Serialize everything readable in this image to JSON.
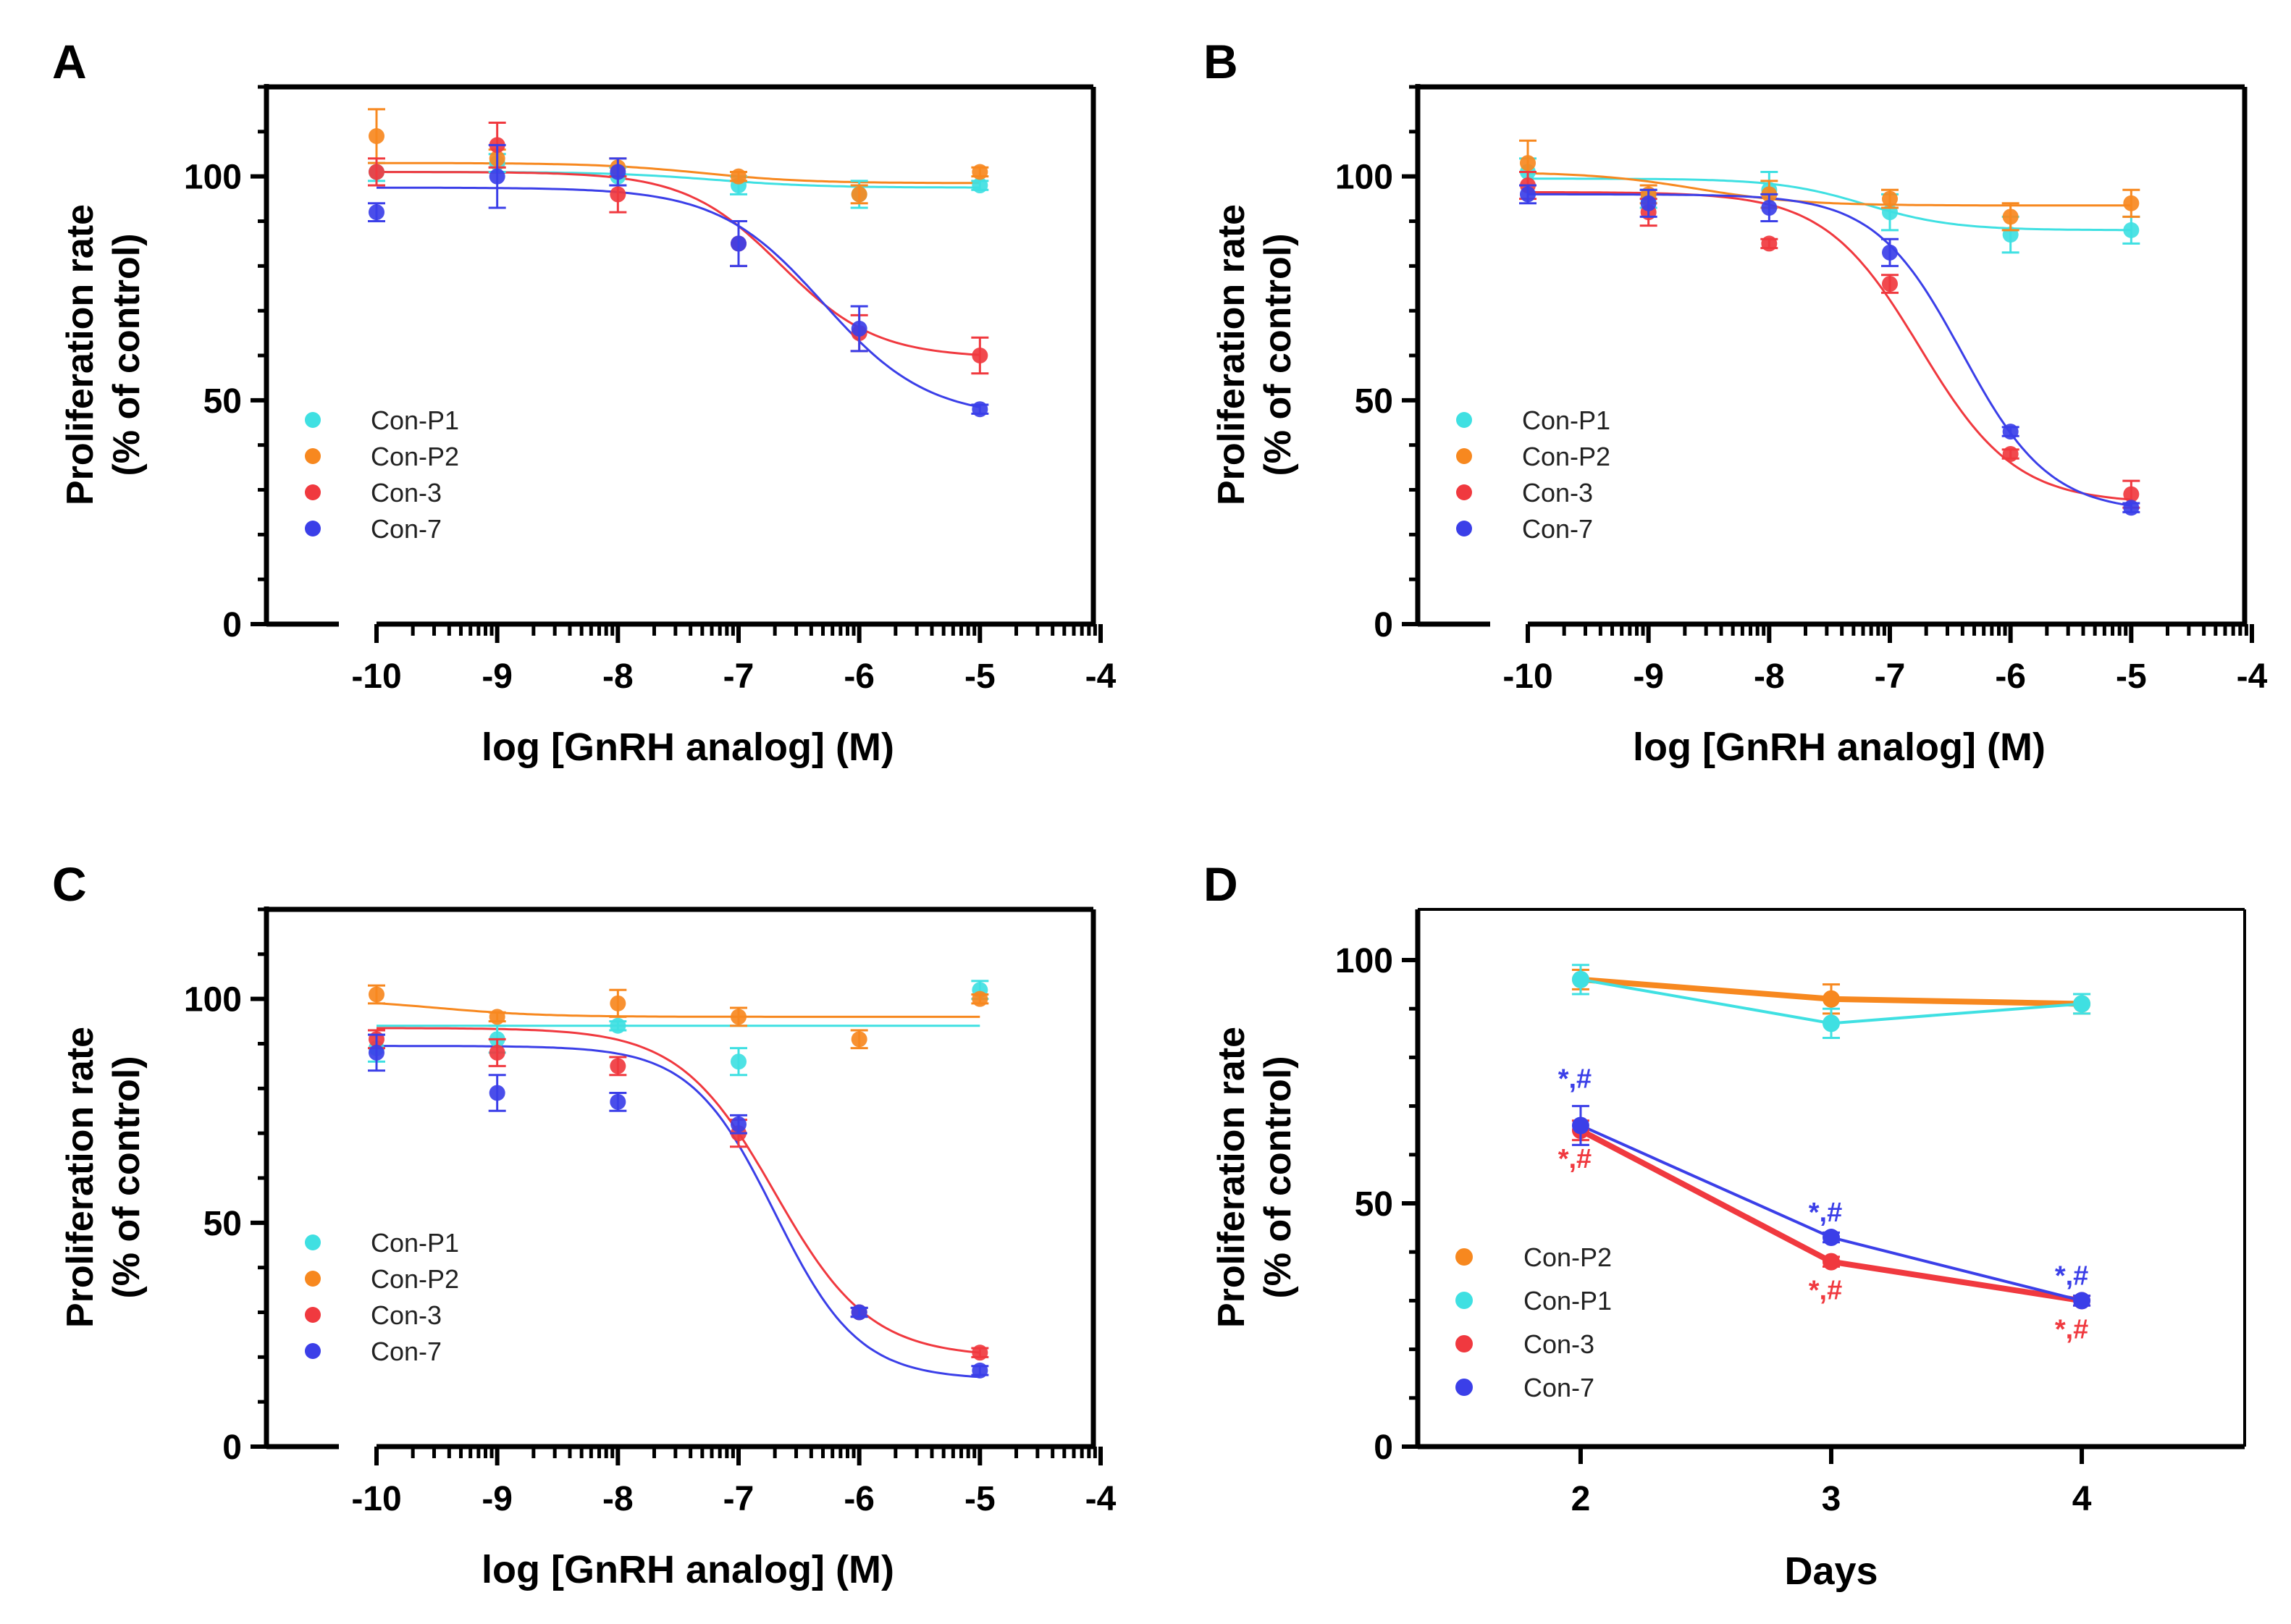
{
  "colors": {
    "con_p1": "#3fe0e2",
    "con_p2": "#f7881f",
    "con_3": "#f0393f",
    "con_7": "#3b3fe8",
    "axis": "#000000"
  },
  "chart_data": [
    {
      "panel_label": "A",
      "type": "scatter",
      "xscale": "log-molar",
      "xlabel": "log [GnRH analog] (M)",
      "ylabel_line1": "Proliferation rate",
      "ylabel_line2": "(% of control)",
      "xlim": [
        -11,
        -4
      ],
      "ylim": [
        0,
        120
      ],
      "xticks": [
        -10,
        -9,
        -8,
        -7,
        -6,
        -5,
        -4
      ],
      "yticks": [
        0,
        50,
        100
      ],
      "legend_position": "lower-left",
      "series": [
        {
          "name": "Con-P1",
          "color_key": "con_p1",
          "x": [
            -10,
            -9,
            -8,
            -7,
            -6,
            -5
          ],
          "y": [
            101,
            103,
            100,
            98,
            96,
            98
          ],
          "err": [
            2,
            2,
            2,
            2,
            3,
            1
          ],
          "fit": {
            "top": 101,
            "bottom": 97.5,
            "logec50": -7.2,
            "hill": 1
          }
        },
        {
          "name": "Con-P2",
          "color_key": "con_p2",
          "x": [
            -10,
            -9,
            -8,
            -7,
            -6,
            -5
          ],
          "y": [
            109,
            104,
            102,
            100,
            96,
            101
          ],
          "err": [
            6,
            2,
            2,
            1,
            2,
            1
          ],
          "fit": {
            "top": 103,
            "bottom": 98.5,
            "logec50": -7.3,
            "hill": 1
          }
        },
        {
          "name": "Con-3",
          "color_key": "con_3",
          "x": [
            -10,
            -9,
            -8,
            -7,
            -6,
            -5
          ],
          "y": [
            101,
            107,
            96,
            85,
            65,
            60
          ],
          "err": [
            3,
            5,
            4,
            5,
            4,
            4
          ],
          "fit": {
            "top": 101,
            "bottom": 59.5,
            "logec50": -6.65,
            "hill": 1.1
          }
        },
        {
          "name": "Con-7",
          "color_key": "con_7",
          "x": [
            -10,
            -9,
            -8,
            -7,
            -6,
            -5
          ],
          "y": [
            92,
            100,
            101,
            85,
            66,
            48
          ],
          "err": [
            2,
            7,
            3,
            5,
            5,
            1
          ],
          "fit": {
            "top": 97.5,
            "bottom": 46,
            "logec50": -6.3,
            "hill": 1
          }
        }
      ]
    },
    {
      "panel_label": "B",
      "type": "scatter",
      "xscale": "log-molar",
      "xlabel": "log [GnRH analog] (M)",
      "ylabel_line1": "Proliferation rate",
      "ylabel_line2": "(% of control)",
      "xlim": [
        -11,
        -4
      ],
      "ylim": [
        0,
        120
      ],
      "xticks": [
        -10,
        -9,
        -8,
        -7,
        -6,
        -5,
        -4
      ],
      "yticks": [
        0,
        50,
        100
      ],
      "legend_position": "lower-left",
      "series": [
        {
          "name": "Con-P1",
          "color_key": "con_p1",
          "x": [
            -10,
            -9,
            -8,
            -7,
            -6,
            -5
          ],
          "y": [
            101,
            95,
            97,
            92,
            87,
            88
          ],
          "err": [
            3,
            2,
            4,
            4,
            4,
            3
          ],
          "fit": {
            "top": 99.5,
            "bottom": 88,
            "logec50": -7.2,
            "hill": 1.2
          }
        },
        {
          "name": "Con-P2",
          "color_key": "con_p2",
          "x": [
            -10,
            -9,
            -8,
            -7,
            -6,
            -5
          ],
          "y": [
            103,
            96,
            96,
            95,
            91,
            94
          ],
          "err": [
            5,
            2,
            3,
            2,
            3,
            3
          ],
          "fit": {
            "top": 101,
            "bottom": 93.5,
            "logec50": -8.6,
            "hill": 1
          }
        },
        {
          "name": "Con-3",
          "color_key": "con_3",
          "x": [
            -10,
            -9,
            -8,
            -7,
            -6,
            -5
          ],
          "y": [
            98,
            92,
            85,
            76,
            38,
            29
          ],
          "err": [
            3,
            3,
            1,
            2,
            1,
            3
          ],
          "fit": {
            "top": 96.5,
            "bottom": 27,
            "logec50": -6.75,
            "hill": 1.1
          }
        },
        {
          "name": "Con-7",
          "color_key": "con_7",
          "x": [
            -10,
            -9,
            -8,
            -7,
            -6,
            -5
          ],
          "y": [
            96,
            94,
            93,
            83,
            43,
            26
          ],
          "err": [
            2,
            3,
            3,
            3,
            1,
            1
          ],
          "fit": {
            "top": 96,
            "bottom": 25,
            "logec50": -6.4,
            "hill": 1.2
          }
        }
      ]
    },
    {
      "panel_label": "C",
      "type": "scatter",
      "xscale": "log-molar",
      "xlabel": "log [GnRH analog] (M)",
      "ylabel_line1": "Proliferation rate",
      "ylabel_line2": "(% of control)",
      "xlim": [
        -11,
        -4
      ],
      "ylim": [
        0,
        120
      ],
      "xticks": [
        -10,
        -9,
        -8,
        -7,
        -6,
        -5,
        -4
      ],
      "yticks": [
        0,
        50,
        100
      ],
      "legend_position": "lower-left",
      "series": [
        {
          "name": "Con-P1",
          "color_key": "con_p1",
          "x": [
            -10,
            -9,
            -8,
            -7,
            -6,
            -5
          ],
          "y": [
            89,
            91,
            94,
            86,
            30,
            102
          ],
          "err": [
            3,
            3,
            1,
            3,
            1,
            2
          ],
          "fit": {
            "top": 94,
            "bottom": 94,
            "logec50": -7,
            "hill": 1
          }
        },
        {
          "name": "Con-P2",
          "color_key": "con_p2",
          "x": [
            -10,
            -9,
            -8,
            -7,
            -6,
            -5
          ],
          "y": [
            101,
            96,
            99,
            96,
            91,
            100
          ],
          "err": [
            2,
            1,
            3,
            2,
            2,
            1
          ],
          "fit": {
            "top": 100,
            "bottom": 96,
            "logec50": -9.5,
            "hill": 1
          }
        },
        {
          "name": "Con-3",
          "color_key": "con_3",
          "x": [
            -10,
            -9,
            -8,
            -7,
            -6,
            -5
          ],
          "y": [
            91,
            88,
            85,
            70,
            30,
            21
          ],
          "err": [
            2,
            3,
            2,
            3,
            1,
            1
          ],
          "fit": {
            "top": 93.5,
            "bottom": 20,
            "logec50": -6.7,
            "hill": 1.1
          }
        },
        {
          "name": "Con-7",
          "color_key": "con_7",
          "x": [
            -10,
            -9,
            -8,
            -7,
            -6,
            -5
          ],
          "y": [
            88,
            79,
            77,
            72,
            30,
            17
          ],
          "err": [
            4,
            4,
            2,
            2,
            1,
            1
          ],
          "fit": {
            "top": 89.5,
            "bottom": 15,
            "logec50": -6.7,
            "hill": 1.25
          }
        }
      ]
    },
    {
      "panel_label": "D",
      "type": "line",
      "xlabel": "Days",
      "ylabel_line1": "Proliferation rate",
      "ylabel_line2": "(% of control)",
      "xlim": [
        1.35,
        4.65
      ],
      "ylim": [
        0,
        110
      ],
      "xticks": [
        2,
        3,
        4
      ],
      "yticks": [
        0,
        50,
        100
      ],
      "legend_position": "lower-left",
      "series": [
        {
          "name": "Con-P2",
          "color_key": "con_p2",
          "x": [
            2,
            3,
            4
          ],
          "y": [
            96,
            92,
            91
          ],
          "err": [
            2,
            3,
            2
          ],
          "annotations": [
            "",
            "",
            ""
          ]
        },
        {
          "name": "Con-P1",
          "color_key": "con_p1",
          "x": [
            2,
            3,
            4
          ],
          "y": [
            96,
            87,
            91
          ],
          "err": [
            3,
            3,
            2
          ],
          "annotations": [
            "",
            "",
            ""
          ]
        },
        {
          "name": "Con-3",
          "color_key": "con_3",
          "x": [
            2,
            3,
            4
          ],
          "y": [
            65,
            38,
            30
          ],
          "err": [
            2,
            1,
            1
          ],
          "annotations": [
            "*,#",
            "*,#",
            "*,#"
          ]
        },
        {
          "name": "Con-7",
          "color_key": "con_7",
          "x": [
            2,
            3,
            4
          ],
          "y": [
            66,
            43,
            30
          ],
          "err": [
            4,
            1,
            1
          ],
          "annotations": [
            "*,#",
            "*,#",
            "*,#"
          ]
        }
      ]
    }
  ]
}
